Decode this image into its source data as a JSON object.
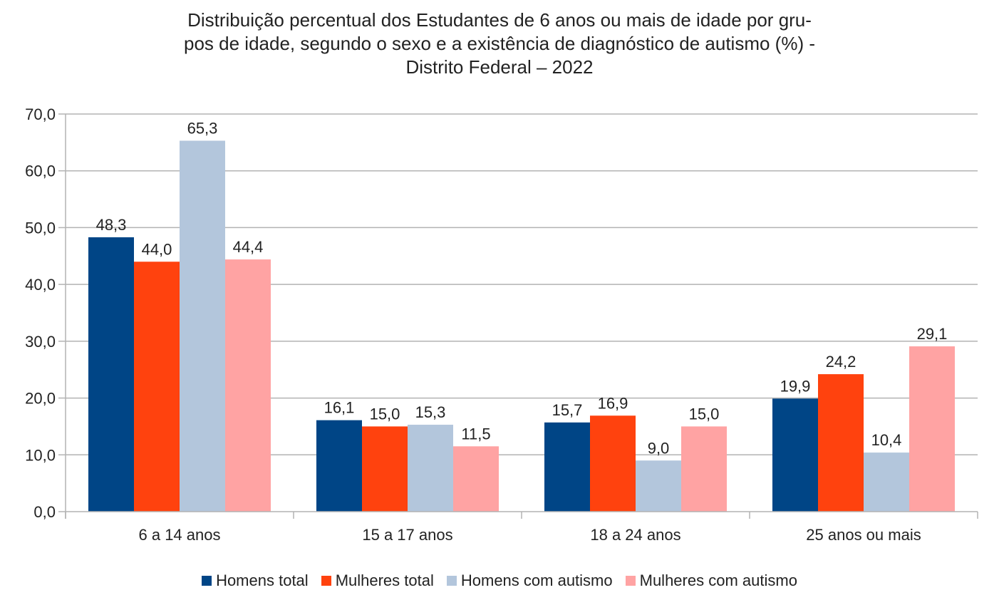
{
  "chart_data": {
    "type": "bar",
    "title_lines": [
      "Distribuição percentual dos Estudantes de 6 anos ou mais de idade por gru-",
      "pos de idade, segundo o sexo e a existência de diagnóstico de autismo (%) -",
      "Distrito Federal – 2022"
    ],
    "categories": [
      "6 a 14 anos",
      "15 a 17 anos",
      "18 a 24 anos",
      "25 anos ou mais"
    ],
    "series": [
      {
        "name": "Homens total",
        "color": "#004586",
        "values": [
          48.3,
          16.1,
          15.7,
          19.9
        ],
        "labels": [
          "48,3",
          "16,1",
          "15,7",
          "19,9"
        ]
      },
      {
        "name": "Mulheres total",
        "color": "#ff420e",
        "values": [
          44.0,
          15.0,
          16.9,
          24.2
        ],
        "labels": [
          "44,0",
          "15,0",
          "16,9",
          "24,2"
        ]
      },
      {
        "name": "Homens com autismo",
        "color": "#b3c6dc",
        "values": [
          65.3,
          15.3,
          9.0,
          10.4
        ],
        "labels": [
          "65,3",
          "15,3",
          "9,0",
          "10,4"
        ]
      },
      {
        "name": "Mulheres com autismo",
        "color": "#ffa3a3",
        "values": [
          44.4,
          11.5,
          15.0,
          29.1
        ],
        "labels": [
          "44,4",
          "11,5",
          "15,0",
          "29,1"
        ]
      }
    ],
    "xlabel": "",
    "ylabel": "",
    "ylim": [
      0,
      70
    ],
    "yticks": [
      0,
      10,
      20,
      30,
      40,
      50,
      60,
      70
    ],
    "ytick_labels": [
      "0,0",
      "10,0",
      "20,0",
      "30,0",
      "40,0",
      "50,0",
      "60,0",
      "70,0"
    ],
    "grid": true,
    "legend_position": "bottom"
  }
}
